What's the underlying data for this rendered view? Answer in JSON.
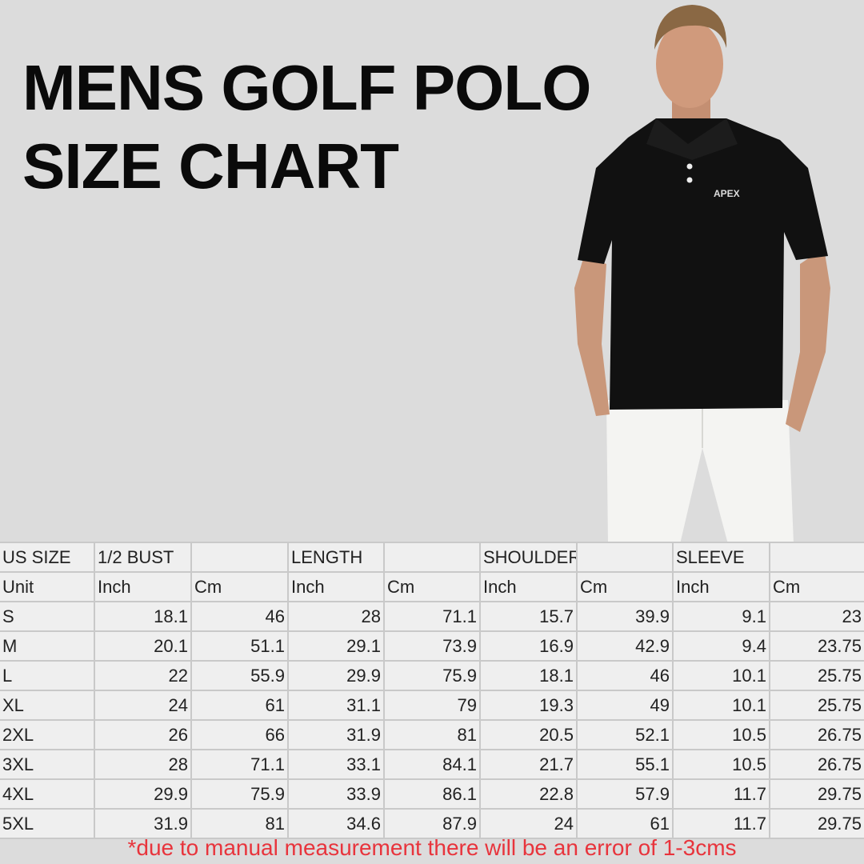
{
  "title_line1": "MENS GOLF POLO",
  "title_line2": "SIZE CHART",
  "product_logo": "APEX",
  "colors": {
    "background": "#dcdcdc",
    "shirt": "#111111",
    "pants": "#f4f4f2",
    "note": "#e8343c"
  },
  "table": {
    "header": [
      "US SIZE",
      "1/2 BUST",
      "",
      "LENGTH",
      "",
      "SHOULDER",
      "",
      "SLEEVE",
      ""
    ],
    "units": [
      "Unit",
      "Inch",
      "Cm",
      "Inch",
      "Cm",
      "Inch",
      "Cm",
      "Inch",
      "Cm"
    ],
    "rows": [
      [
        "S",
        "18.1",
        "46",
        "28",
        "71.1",
        "15.7",
        "39.9",
        "9.1",
        "23"
      ],
      [
        "M",
        "20.1",
        "51.1",
        "29.1",
        "73.9",
        "16.9",
        "42.9",
        "9.4",
        "23.75"
      ],
      [
        "L",
        "22",
        "55.9",
        "29.9",
        "75.9",
        "18.1",
        "46",
        "10.1",
        "25.75"
      ],
      [
        "XL",
        "24",
        "61",
        "31.1",
        "79",
        "19.3",
        "49",
        "10.1",
        "25.75"
      ],
      [
        "2XL",
        "26",
        "66",
        "31.9",
        "81",
        "20.5",
        "52.1",
        "10.5",
        "26.75"
      ],
      [
        "3XL",
        "28",
        "71.1",
        "33.1",
        "84.1",
        "21.7",
        "55.1",
        "10.5",
        "26.75"
      ],
      [
        "4XL",
        "29.9",
        "75.9",
        "33.9",
        "86.1",
        "22.8",
        "57.9",
        "11.7",
        "29.75"
      ],
      [
        "5XL",
        "31.9",
        "81",
        "34.6",
        "87.9",
        "24",
        "61",
        "11.7",
        "29.75"
      ]
    ]
  },
  "note": "*due to manual measurement there will be an error of 1-3cms"
}
